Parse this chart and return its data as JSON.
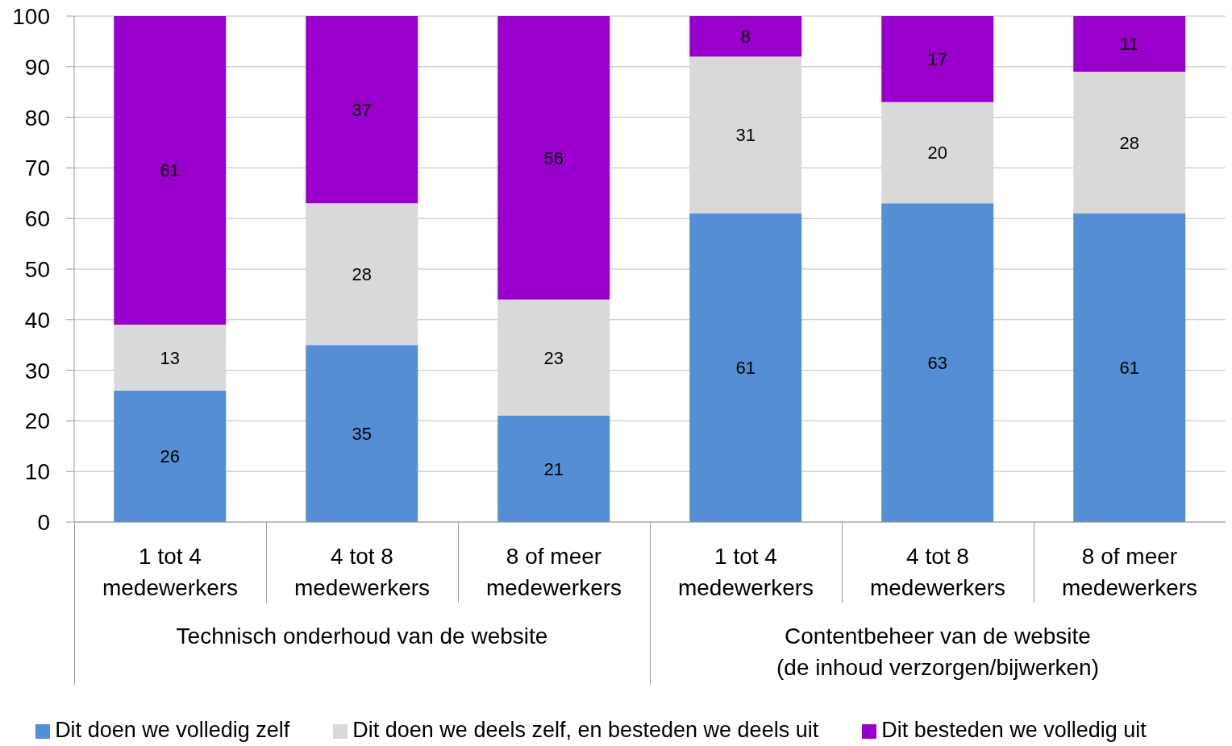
{
  "chart_data": {
    "type": "bar",
    "stacked": true,
    "categories": [
      "1 tot 4 medewerkers",
      "4 tot 8 medewerkers",
      "8 of meer medewerkers",
      "1 tot 4 medewerkers",
      "4 tot 8 medewerkers",
      "8 of meer medewerkers"
    ],
    "series": [
      {
        "name": "Dit doen we volledig zelf",
        "color": "#558ed5",
        "values": [
          26,
          35,
          21,
          61,
          63,
          61
        ]
      },
      {
        "name": "Dit doen we deels zelf, en besteden we deels uit",
        "color": "#d9d9d9",
        "values": [
          13,
          28,
          23,
          31,
          20,
          28
        ]
      },
      {
        "name": "Dit besteden we volledig uit",
        "color": "#9900cc",
        "values": [
          61,
          37,
          56,
          8,
          17,
          11
        ]
      }
    ],
    "ylim": [
      0,
      100
    ],
    "yticks": [
      0,
      10,
      20,
      30,
      40,
      50,
      60,
      70,
      80,
      90,
      100
    ],
    "grid": "y",
    "legend": "bottom",
    "data_labels": true,
    "annotations": [
      "Technisch onderhoud van de website",
      "Contentbeheer van de website\n(de inhoud verzorgen/bijwerken)"
    ]
  }
}
